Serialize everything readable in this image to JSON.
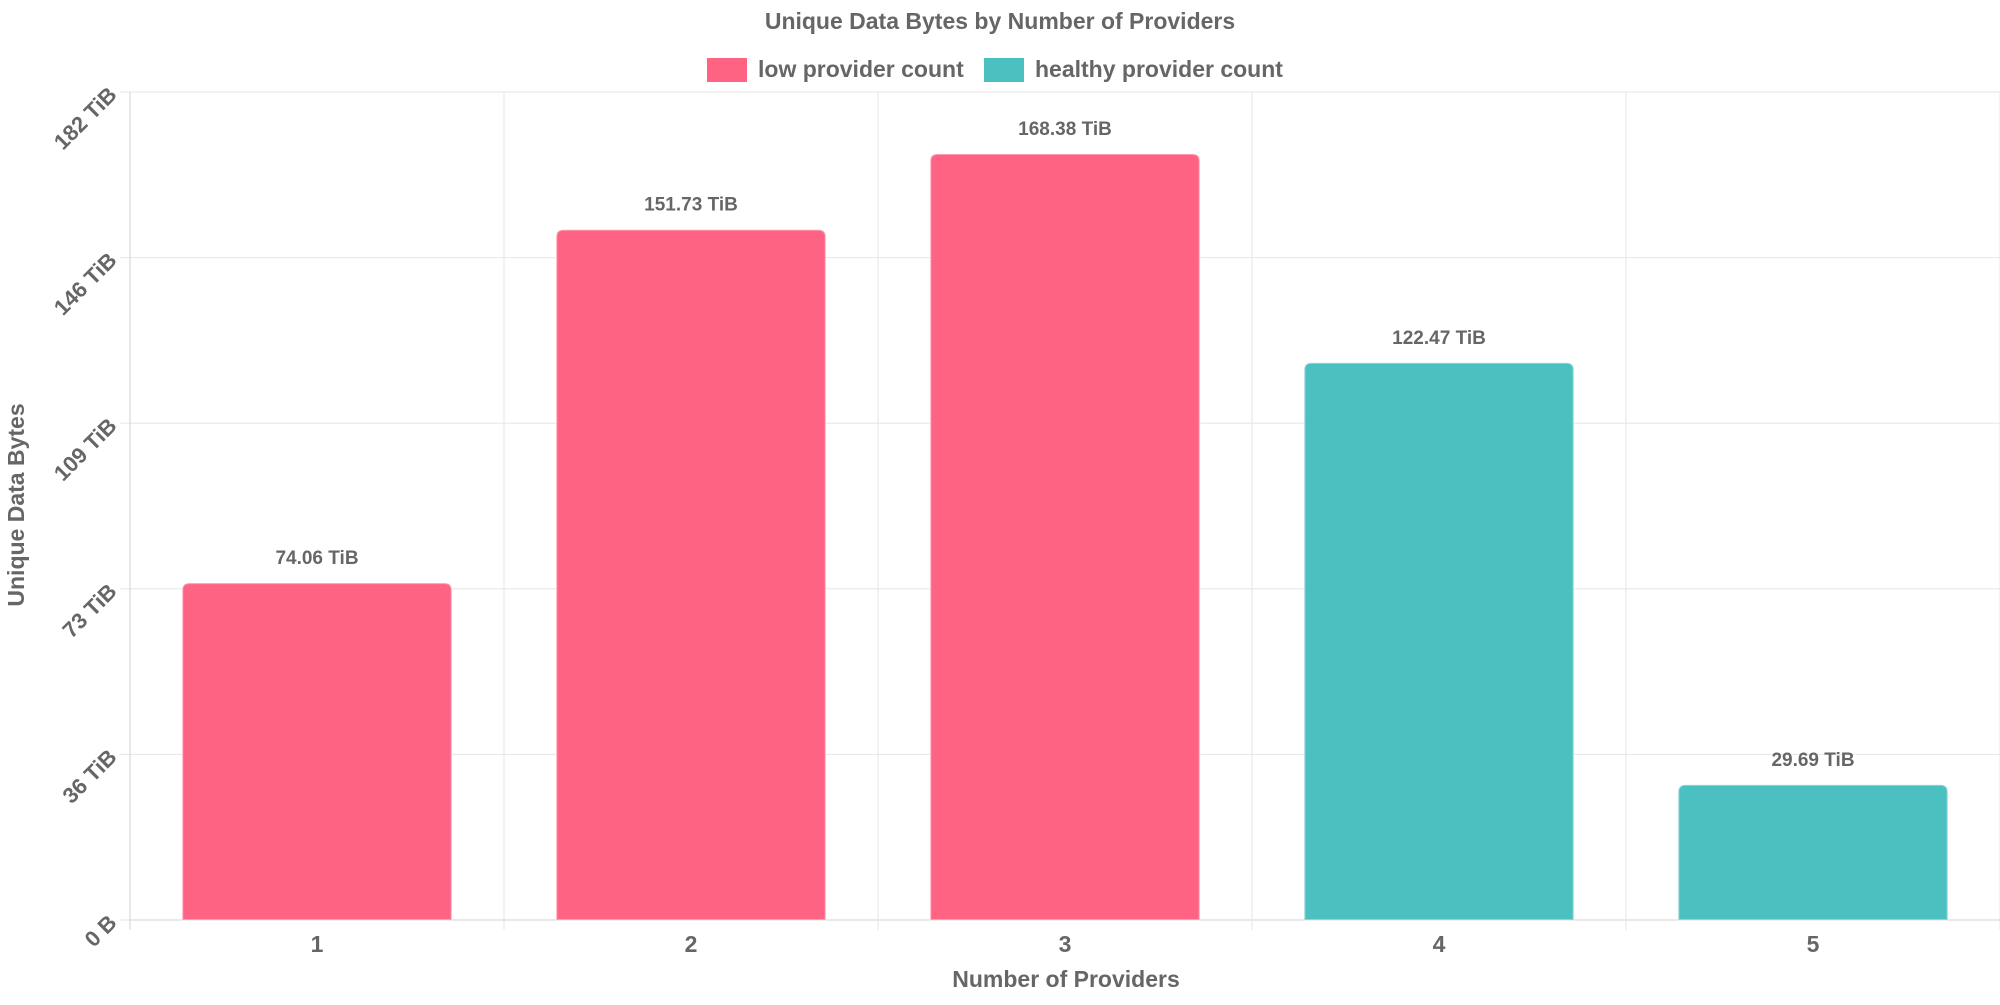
{
  "chart_data": {
    "type": "bar",
    "title": "Unique Data Bytes by Number of Providers",
    "xlabel": "Number of Providers",
    "ylabel": "Unique Data Bytes",
    "categories": [
      "1",
      "2",
      "3",
      "4",
      "5"
    ],
    "values_tib": [
      74.06,
      151.73,
      168.38,
      122.47,
      29.69
    ],
    "data_labels": [
      "74.06 TiB",
      "151.73 TiB",
      "168.38 TiB",
      "122.47 TiB",
      "29.69 TiB"
    ],
    "bar_series": [
      "low provider count",
      "low provider count",
      "low provider count",
      "healthy provider count",
      "healthy provider count"
    ],
    "y_ticks": [
      {
        "value": 0,
        "label": "0 B"
      },
      {
        "value": 36.4,
        "label": "36 TiB"
      },
      {
        "value": 72.8,
        "label": "73 TiB"
      },
      {
        "value": 109.2,
        "label": "109 TiB"
      },
      {
        "value": 145.6,
        "label": "146 TiB"
      },
      {
        "value": 182,
        "label": "182 TiB"
      }
    ],
    "ylim": [
      0,
      182
    ],
    "grid": true,
    "legend_position": "top",
    "legend": [
      {
        "name": "low provider count",
        "color": "#ff6384"
      },
      {
        "name": "healthy provider count",
        "color": "#4bc0c0"
      }
    ],
    "text_color": "#666666",
    "grid_color": "#e6e6e6"
  }
}
